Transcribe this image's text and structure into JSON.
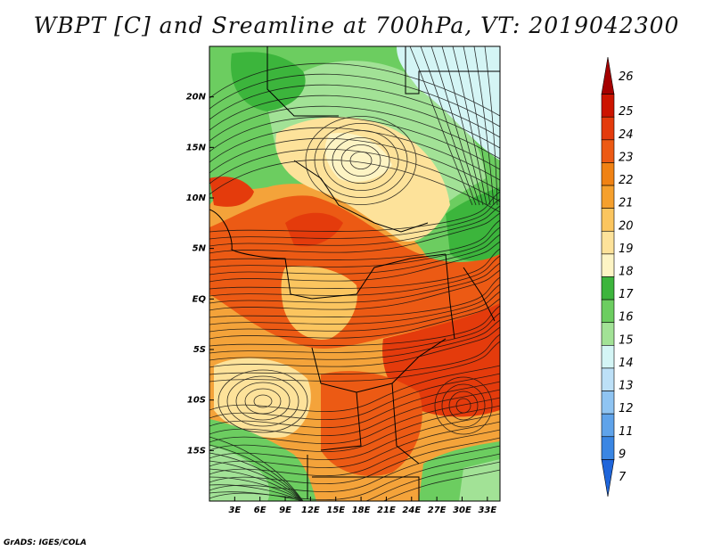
{
  "title": "WBPT [C] and Sreamline at 700hPa, VT: 2019042300",
  "footer": "GrADS: IGES/COLA",
  "map": {
    "lat_labels": [
      "20N",
      "15N",
      "10N",
      "5N",
      "EQ",
      "5S",
      "10S",
      "15S"
    ],
    "lat_values": [
      20,
      15,
      10,
      5,
      0,
      -5,
      -10,
      -15
    ],
    "lon_labels": [
      "3E",
      "6E",
      "9E",
      "12E",
      "15E",
      "18E",
      "21E",
      "24E",
      "27E",
      "30E",
      "33E"
    ],
    "lon_values": [
      3,
      6,
      9,
      12,
      15,
      18,
      21,
      24,
      27,
      30,
      33
    ],
    "lon_range": [
      0,
      34.5
    ],
    "lat_range": [
      -20,
      25
    ]
  },
  "colorbar": {
    "labels": [
      "26",
      "25",
      "24",
      "23",
      "22",
      "21",
      "20",
      "19",
      "18",
      "17",
      "16",
      "15",
      "14",
      "13",
      "12",
      "11",
      "9",
      "7"
    ],
    "colors": [
      "#a50000",
      "#cc1400",
      "#e43b0c",
      "#ec5a14",
      "#f08214",
      "#f5a02d",
      "#fbc55f",
      "#fde29a",
      "#fdf4c4",
      "#3cb53c",
      "#6ccd60",
      "#a2e296",
      "#d4f5f5",
      "#bde0f7",
      "#8fc4f2",
      "#5fa3ea",
      "#3a86e3",
      "#1f65da"
    ]
  },
  "chart_data": {
    "type": "heatmap",
    "title": "WBPT [C] and Sreamline at 700hPa, VT: 2019042300",
    "variable": "Wet-bulb potential temperature (C) with 700hPa streamlines",
    "x_ticks": [
      "3E",
      "6E",
      "9E",
      "12E",
      "15E",
      "18E",
      "21E",
      "24E",
      "27E",
      "30E",
      "33E"
    ],
    "y_ticks": [
      "20N",
      "15N",
      "10N",
      "5N",
      "EQ",
      "5S",
      "10S",
      "15S"
    ],
    "scale_levels": [
      "7",
      "9",
      "11",
      "12",
      "13",
      "14",
      "15",
      "16",
      "17",
      "18",
      "19",
      "20",
      "21",
      "22",
      "23",
      "24",
      "25",
      "26"
    ]
  }
}
